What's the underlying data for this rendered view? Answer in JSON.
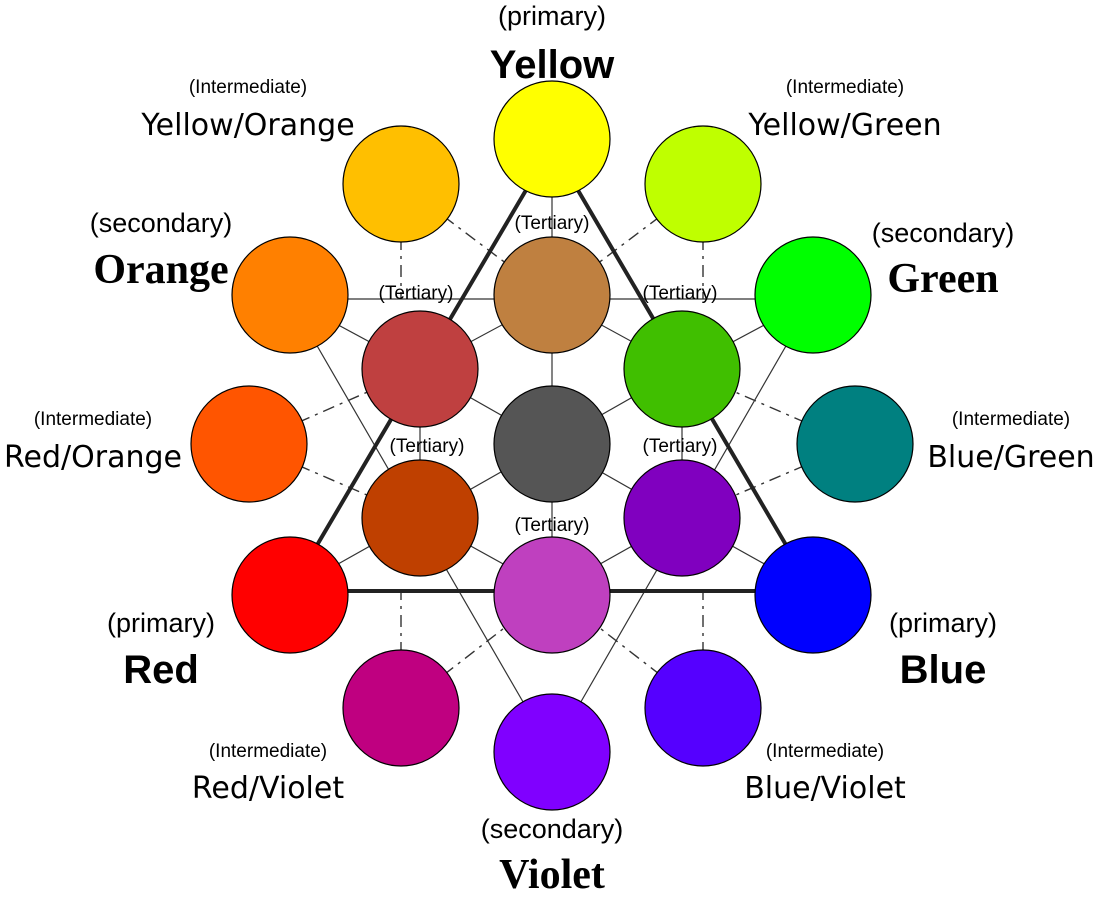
{
  "diagram": {
    "colors": {
      "yellow": "#ffff00",
      "yellow_green": "#bfff00",
      "green": "#00ff00",
      "blue_green": "#008080",
      "blue": "#0000ff",
      "blue_violet": "#5500ff",
      "violet": "#8000ff",
      "red_violet": "#bf0080",
      "red": "#ff0000",
      "red_orange": "#ff5500",
      "orange": "#ff8000",
      "yellow_orange": "#ffbf00",
      "tertiary_top": "#bf8040",
      "tertiary_upper_left": "#bf4040",
      "tertiary_upper_right": "#40bf00",
      "tertiary_lower_left": "#bf4000",
      "tertiary_lower_right": "#8000bf",
      "tertiary_bottom": "#bf40bf",
      "center": "#555555"
    },
    "labels": {
      "yellow": {
        "sub": "(primary)",
        "name": "Yellow"
      },
      "red": {
        "sub": "(primary)",
        "name": "Red"
      },
      "blue": {
        "sub": "(primary)",
        "name": "Blue"
      },
      "orange": {
        "sub": "(secondary)",
        "name": "Orange"
      },
      "green": {
        "sub": "(secondary)",
        "name": "Green"
      },
      "violet": {
        "sub": "(secondary)",
        "name": "Violet"
      },
      "yellow_orange": {
        "sub": "(Intermediate)",
        "name": "Yellow/Orange"
      },
      "yellow_green": {
        "sub": "(Intermediate)",
        "name": "Yellow/Green"
      },
      "red_orange": {
        "sub": "(Intermediate)",
        "name": "Red/Orange"
      },
      "blue_green": {
        "sub": "(Intermediate)",
        "name": "Blue/Green"
      },
      "red_violet": {
        "sub": "(Intermediate)",
        "name": "Red/Violet"
      },
      "blue_violet": {
        "sub": "(Intermediate)",
        "name": "Blue/Violet"
      }
    },
    "tertiary_label": "(Tertiary)"
  }
}
